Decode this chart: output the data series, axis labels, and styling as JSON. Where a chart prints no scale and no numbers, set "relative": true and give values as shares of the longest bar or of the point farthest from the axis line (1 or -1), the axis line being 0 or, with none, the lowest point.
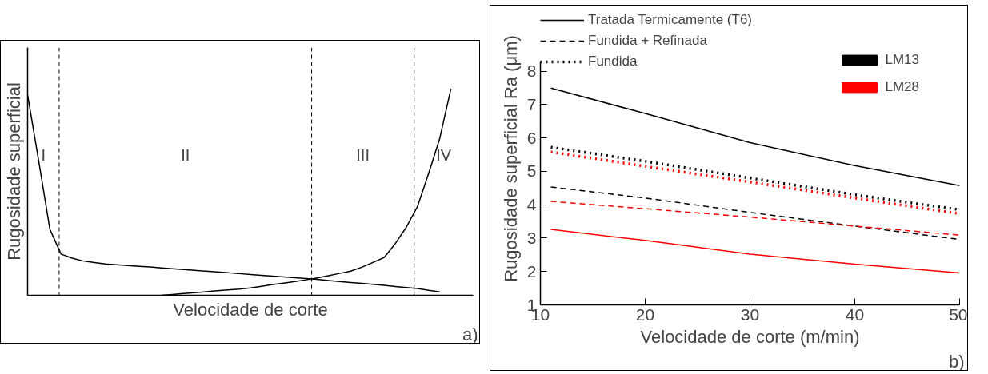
{
  "chart_data": [
    {
      "type": "line",
      "relative": true,
      "xlabel": "Velocidade de corte",
      "ylabel": "Rugosidade superficial",
      "line_style": "solid",
      "categories": [
        null,
        null,
        null,
        null,
        null,
        null,
        null,
        null,
        null,
        null,
        null,
        null,
        null,
        null,
        null,
        null,
        null,
        null,
        null,
        null,
        null,
        null,
        null,
        null,
        null,
        null,
        null,
        null,
        null,
        null,
        null,
        null,
        null,
        null,
        null,
        null,
        null,
        null,
        null,
        null,
        null
      ],
      "series": [
        {
          "color": "#000000",
          "values": [
            0.97,
            0.65,
            0.32,
            0.2,
            0.18,
            0.166,
            0.159,
            0.152,
            0.148,
            0.144,
            0.14,
            0.137,
            0.133,
            0.129,
            0.125,
            0.121,
            0.117,
            0.113,
            0.109,
            0.105,
            0.101,
            0.097,
            0.093,
            0.089,
            0.085,
            0.081,
            0.077,
            0.072,
            0.067,
            0.062,
            0.058,
            0.053,
            0.048,
            0.043,
            0.038,
            0.033,
            0.024,
            0.016,
            null,
            null,
            null
          ]
        },
        {
          "color": "#000000",
          "values": [
            null,
            null,
            null,
            null,
            null,
            null,
            null,
            null,
            null,
            null,
            null,
            null,
            0.0,
            0.004,
            0.009,
            0.013,
            0.017,
            0.022,
            0.026,
            0.03,
            0.036,
            0.044,
            0.052,
            0.059,
            0.067,
            0.075,
            0.084,
            0.095,
            0.106,
            0.117,
            0.136,
            0.159,
            0.183,
            0.25,
            0.33,
            0.43,
            0.59,
            0.76,
            1.0,
            null,
            null
          ]
        }
      ],
      "annotations": [
        "I",
        "II",
        "III",
        "IV",
        "a)"
      ]
    },
    {
      "type": "line",
      "xlabel": "Velocidade de corte (m/min)",
      "ylabel": "Rugosidade superficial Ra (μm)",
      "xlim": [
        10,
        50
      ],
      "ylim": [
        1,
        8.3
      ],
      "xticks": [
        10,
        20,
        30,
        40,
        50
      ],
      "yticks": [
        1,
        2,
        3,
        4,
        5,
        6,
        7,
        8
      ],
      "grid": false,
      "legend": "top left",
      "x": [
        11,
        20,
        30,
        40,
        50
      ],
      "series": [
        {
          "name": "Tratada Termicamente (T6)",
          "color": "#000000",
          "line_style": "solid",
          "values": [
            7.49,
            6.73,
            5.86,
            5.17,
            4.57
          ]
        },
        {
          "name": "Fundida + Refinada",
          "color": "#000000",
          "line_style": "dashed",
          "values": [
            4.53,
            4.2,
            3.77,
            3.36,
            2.96
          ]
        },
        {
          "name": "Fundida",
          "color": "#000000",
          "line_style": "dotted",
          "values": [
            5.72,
            5.3,
            4.8,
            4.3,
            3.85
          ]
        },
        {
          "color": "#ff0000",
          "line_style": "solid",
          "values": [
            3.26,
            2.93,
            2.52,
            2.22,
            1.96
          ]
        },
        {
          "color": "#ff0000",
          "line_style": "dashed",
          "values": [
            4.1,
            3.88,
            3.63,
            3.36,
            3.09
          ]
        },
        {
          "color": "#ff0000",
          "line_style": "dotted",
          "values": [
            5.58,
            5.15,
            4.68,
            4.2,
            3.73
          ]
        },
        {
          "type": "bar",
          "name": "LM13",
          "color": "#000000",
          "values": [
            null,
            null,
            null,
            null,
            null
          ]
        },
        {
          "type": "bar",
          "name": "LM28",
          "color": "#ff0000",
          "values": [
            null,
            null,
            null,
            null,
            null
          ]
        }
      ],
      "annotations": [
        "b)"
      ]
    }
  ]
}
